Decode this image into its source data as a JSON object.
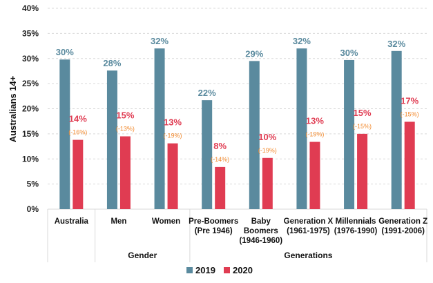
{
  "chart_data": {
    "type": "bar",
    "title": "",
    "xlabel": "",
    "ylabel": "Australians 14+",
    "ylim": [
      0,
      40
    ],
    "yticks": [
      "0%",
      "5%",
      "10%",
      "15%",
      "20%",
      "25%",
      "30%",
      "35%",
      "40%"
    ],
    "grid": true,
    "legend_placement": "bottom",
    "categories": [
      {
        "label": [
          "Australia"
        ],
        "group": ""
      },
      {
        "label": [
          "Men"
        ],
        "group": "Gender"
      },
      {
        "label": [
          "Women"
        ],
        "group": "Gender"
      },
      {
        "label": [
          "Pre-Boomers",
          "(Pre 1946)"
        ],
        "group": "Generations"
      },
      {
        "label": [
          "Baby",
          "Boomers",
          "(1946-1960)"
        ],
        "group": "Generations"
      },
      {
        "label": [
          "Generation X",
          "(1961-1975)"
        ],
        "group": "Generations"
      },
      {
        "label": [
          "Millennials",
          "(1976-1990)"
        ],
        "group": "Generations"
      },
      {
        "label": [
          "Generation Z",
          "(1991-2006)"
        ],
        "group": "Generations"
      }
    ],
    "groups": [
      {
        "name": "",
        "start": 0,
        "end": 0
      },
      {
        "name": "Gender",
        "start": 1,
        "end": 2
      },
      {
        "name": "Generations",
        "start": 3,
        "end": 7
      }
    ],
    "series": [
      {
        "name": "2019",
        "color": "#5a8a9e",
        "values": [
          29.8,
          27.6,
          32.0,
          21.7,
          29.5,
          32.0,
          29.7,
          31.5
        ],
        "labels": [
          "30%",
          "28%",
          "32%",
          "22%",
          "29%",
          "32%",
          "30%",
          "32%"
        ]
      },
      {
        "name": "2020",
        "color": "#e03c52",
        "values": [
          13.8,
          14.5,
          13.1,
          8.4,
          10.2,
          13.4,
          15.0,
          17.4
        ],
        "labels": [
          "14%",
          "15%",
          "13%",
          "8%",
          "10%",
          "13%",
          "15%",
          "17%"
        ],
        "change_labels": [
          "(-16%)",
          "(-13%)",
          "(-19%)",
          "(-14%)",
          "(-19%)",
          "(-19%)",
          "(-15%)",
          "(-15%)"
        ],
        "change_color": "#f28a2e"
      }
    ]
  }
}
